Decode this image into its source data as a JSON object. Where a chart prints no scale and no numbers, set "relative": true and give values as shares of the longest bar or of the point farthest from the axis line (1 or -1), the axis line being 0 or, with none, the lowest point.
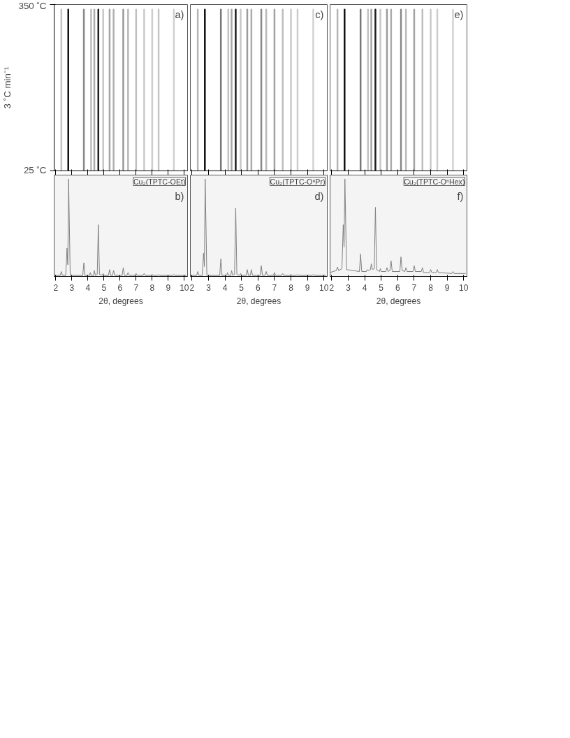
{
  "chart_data": [
    {
      "type": "line",
      "xlim": [
        1.9,
        10.2
      ],
      "xticks": [
        2,
        3,
        4,
        5,
        6,
        7,
        8,
        9,
        10
      ],
      "ylim": [
        25,
        350
      ],
      "yticks": [
        {
          "value": 25,
          "label": "25 ˚C"
        },
        {
          "value": 350,
          "label": "350 ˚C"
        }
      ],
      "ylabel": "3 ˚C min⁻¹",
      "tick_labels": "y",
      "annotations": [
        "a)"
      ],
      "series": [
        {
          "x": [
            2.35,
            2.35
          ],
          "values": [
            27,
            340
          ],
          "color": "#c3c3c3"
        },
        {
          "x": [
            2.78,
            2.78
          ],
          "values": [
            27,
            340
          ],
          "color": "#111111"
        },
        {
          "x": [
            3.75,
            3.75
          ],
          "values": [
            27,
            340
          ],
          "color": "#888888"
        },
        {
          "x": [
            4.2,
            4.2
          ],
          "values": [
            27,
            340
          ],
          "color": "#bdbdbd"
        },
        {
          "x": [
            4.4,
            4.4
          ],
          "values": [
            27,
            340
          ],
          "color": "#aaaaaa"
        },
        {
          "x": [
            4.65,
            4.65
          ],
          "values": [
            27,
            340
          ],
          "color": "#1c1c1c"
        },
        {
          "x": [
            4.95,
            4.95
          ],
          "values": [
            27,
            340
          ],
          "color": "#c7c7c7"
        },
        {
          "x": [
            5.35,
            5.35
          ],
          "values": [
            27,
            340
          ],
          "color": "#a4a4a4"
        },
        {
          "x": [
            5.6,
            5.6
          ],
          "values": [
            27,
            340
          ],
          "color": "#b0b0b0"
        },
        {
          "x": [
            6.2,
            6.2
          ],
          "values": [
            27,
            340
          ],
          "color": "#999999"
        },
        {
          "x": [
            6.5,
            6.5
          ],
          "values": [
            27,
            340
          ],
          "color": "#b8b8b8"
        },
        {
          "x": [
            7.0,
            7.0
          ],
          "values": [
            27,
            340
          ],
          "color": "#c0c0c0"
        },
        {
          "x": [
            7.5,
            7.5
          ],
          "values": [
            27,
            340
          ],
          "color": "#cacaca"
        },
        {
          "x": [
            8.0,
            8.0
          ],
          "values": [
            27,
            340
          ],
          "color": "#cdcdcd"
        },
        {
          "x": [
            8.4,
            8.4
          ],
          "values": [
            27,
            340
          ],
          "color": "#c5c5c5"
        },
        {
          "x": [
            9.35,
            9.35
          ],
          "values": [
            27,
            340
          ],
          "color": "#d0d0d0"
        }
      ]
    },
    {
      "type": "line",
      "xlim": [
        1.9,
        10.2
      ],
      "xticks": [
        2,
        3,
        4,
        5,
        6,
        7,
        8,
        9,
        10
      ],
      "ylim": [
        25,
        350
      ],
      "tick_labels": false,
      "annotations": [
        "c)"
      ],
      "series": [
        {
          "x": [
            2.35,
            2.35
          ],
          "values": [
            27,
            340
          ],
          "color": "#b5b5b5"
        },
        {
          "x": [
            2.78,
            2.78
          ],
          "values": [
            27,
            340
          ],
          "color": "#111111"
        },
        {
          "x": [
            3.75,
            3.75
          ],
          "values": [
            27,
            340
          ],
          "color": "#777777"
        },
        {
          "x": [
            4.2,
            4.2
          ],
          "values": [
            27,
            340
          ],
          "color": "#c2c2c2"
        },
        {
          "x": [
            4.4,
            4.4
          ],
          "values": [
            27,
            340
          ],
          "color": "#a6a6a6"
        },
        {
          "x": [
            4.65,
            4.65
          ],
          "values": [
            27,
            340
          ],
          "color": "#1c1c1c"
        },
        {
          "x": [
            4.95,
            4.95
          ],
          "values": [
            27,
            340
          ],
          "color": "#c6c6c6"
        },
        {
          "x": [
            5.35,
            5.35
          ],
          "values": [
            27,
            340
          ],
          "color": "#9c9c9c"
        },
        {
          "x": [
            5.6,
            5.6
          ],
          "values": [
            27,
            340
          ],
          "color": "#acacac"
        },
        {
          "x": [
            6.2,
            6.2
          ],
          "values": [
            27,
            340
          ],
          "color": "#888888"
        },
        {
          "x": [
            6.5,
            6.5
          ],
          "values": [
            27,
            340
          ],
          "color": "#bababa"
        },
        {
          "x": [
            7.0,
            7.0
          ],
          "values": [
            27,
            340
          ],
          "color": "#a2a2a2"
        },
        {
          "x": [
            7.5,
            7.5
          ],
          "values": [
            27,
            340
          ],
          "color": "#bebebe"
        },
        {
          "x": [
            8.0,
            8.0
          ],
          "values": [
            27,
            340
          ],
          "color": "#c9c9c9"
        },
        {
          "x": [
            8.4,
            8.4
          ],
          "values": [
            27,
            340
          ],
          "color": "#cccccc"
        },
        {
          "x": [
            9.35,
            9.35
          ],
          "values": [
            27,
            340
          ],
          "color": "#d2d2d2"
        }
      ]
    },
    {
      "type": "line",
      "xlim": [
        1.9,
        10.2
      ],
      "xticks": [
        2,
        3,
        4,
        5,
        6,
        7,
        8,
        9,
        10
      ],
      "ylim": [
        25,
        350
      ],
      "tick_labels": false,
      "annotations": [
        "e)"
      ],
      "series": [
        {
          "x": [
            2.35,
            2.35
          ],
          "values": [
            27,
            340
          ],
          "color": "#b5b5b5"
        },
        {
          "x": [
            2.78,
            2.78
          ],
          "values": [
            27,
            340
          ],
          "color": "#111111"
        },
        {
          "x": [
            3.75,
            3.75
          ],
          "values": [
            27,
            340
          ],
          "color": "#777777"
        },
        {
          "x": [
            4.2,
            4.2
          ],
          "values": [
            27,
            340
          ],
          "color": "#c2c2c2"
        },
        {
          "x": [
            4.4,
            4.4
          ],
          "values": [
            27,
            340
          ],
          "color": "#a6a6a6"
        },
        {
          "x": [
            4.65,
            4.65
          ],
          "values": [
            27,
            340
          ],
          "color": "#1c1c1c"
        },
        {
          "x": [
            4.95,
            4.95
          ],
          "values": [
            27,
            340
          ],
          "color": "#c6c6c6"
        },
        {
          "x": [
            5.35,
            5.35
          ],
          "values": [
            27,
            340
          ],
          "color": "#9c9c9c"
        },
        {
          "x": [
            5.6,
            5.6
          ],
          "values": [
            27,
            340
          ],
          "color": "#acacac"
        },
        {
          "x": [
            6.2,
            6.2
          ],
          "values": [
            27,
            340
          ],
          "color": "#888888"
        },
        {
          "x": [
            6.5,
            6.5
          ],
          "values": [
            27,
            340
          ],
          "color": "#bababa"
        },
        {
          "x": [
            7.0,
            7.0
          ],
          "values": [
            27,
            340
          ],
          "color": "#a2a2a2"
        },
        {
          "x": [
            7.5,
            7.5
          ],
          "values": [
            27,
            340
          ],
          "color": "#bebebe"
        },
        {
          "x": [
            8.0,
            8.0
          ],
          "values": [
            27,
            340
          ],
          "color": "#c9c9c9"
        },
        {
          "x": [
            8.4,
            8.4
          ],
          "values": [
            27,
            340
          ],
          "color": "#cccccc"
        },
        {
          "x": [
            9.35,
            9.35
          ],
          "values": [
            27,
            340
          ],
          "color": "#d2d2d2"
        }
      ]
    },
    {
      "type": "line",
      "relative": true,
      "xlim": [
        1.9,
        10.2
      ],
      "xticks": [
        2,
        3,
        4,
        5,
        6,
        7,
        8,
        9,
        10
      ],
      "xlabel": "2θ, degrees",
      "tick_labels": "x",
      "annotations": [
        "Cu₂(TPTC-OEt)",
        "b)"
      ],
      "x": [
        1.9,
        2.28,
        2.35,
        2.42,
        2.62,
        2.7,
        2.75,
        2.8,
        2.9,
        3.68,
        3.75,
        3.82,
        4.1,
        4.15,
        4.2,
        4.35,
        4.4,
        4.47,
        4.58,
        4.65,
        4.72,
        4.9,
        4.95,
        5.0,
        5.28,
        5.35,
        5.42,
        5.53,
        5.6,
        5.67,
        6.13,
        6.2,
        6.27,
        6.43,
        6.5,
        6.57,
        6.93,
        7.0,
        7.07,
        7.43,
        7.5,
        7.57,
        7.93,
        8.0,
        8.07,
        8.33,
        8.4,
        8.47,
        9.28,
        9.35,
        9.42,
        10.1
      ],
      "series": [
        {
          "color": "#808080",
          "values": [
            0.01,
            0.01,
            0.05,
            0.01,
            0.01,
            0.29,
            0.12,
            1.0,
            0.01,
            0.01,
            0.14,
            0.01,
            0.01,
            0.04,
            0.01,
            0.01,
            0.06,
            0.01,
            0.02,
            0.53,
            0.02,
            0.01,
            0.03,
            0.01,
            0.01,
            0.07,
            0.01,
            0.01,
            0.06,
            0.01,
            0.01,
            0.09,
            0.01,
            0.01,
            0.04,
            0.01,
            0.01,
            0.03,
            0.01,
            0.01,
            0.03,
            0.01,
            0.01,
            0.02,
            0.01,
            0.01,
            0.02,
            0.01,
            0.01,
            0.02,
            0.01,
            0.01
          ]
        }
      ]
    },
    {
      "type": "line",
      "relative": true,
      "xlim": [
        1.9,
        10.2
      ],
      "xticks": [
        2,
        3,
        4,
        5,
        6,
        7,
        8,
        9,
        10
      ],
      "xlabel": "2θ, degrees",
      "tick_labels": "x",
      "annotations": [
        "Cu₂(TPTC-OⁿPr)",
        "d)"
      ],
      "x": [
        1.9,
        2.28,
        2.35,
        2.42,
        2.62,
        2.7,
        2.75,
        2.8,
        2.9,
        3.68,
        3.75,
        3.82,
        4.1,
        4.15,
        4.2,
        4.35,
        4.4,
        4.47,
        4.58,
        4.65,
        4.72,
        4.9,
        4.95,
        5.0,
        5.28,
        5.35,
        5.42,
        5.53,
        5.6,
        5.67,
        6.13,
        6.2,
        6.27,
        6.43,
        6.5,
        6.57,
        6.93,
        7.0,
        7.07,
        7.43,
        7.5,
        7.57,
        7.93,
        8.0,
        8.07,
        8.33,
        8.4,
        8.47,
        9.28,
        9.35,
        9.42,
        10.1
      ],
      "series": [
        {
          "color": "#808080",
          "values": [
            0.01,
            0.01,
            0.05,
            0.01,
            0.01,
            0.24,
            0.1,
            1.0,
            0.01,
            0.01,
            0.18,
            0.01,
            0.01,
            0.04,
            0.01,
            0.01,
            0.06,
            0.01,
            0.02,
            0.7,
            0.02,
            0.01,
            0.03,
            0.01,
            0.01,
            0.07,
            0.01,
            0.01,
            0.07,
            0.01,
            0.01,
            0.11,
            0.01,
            0.01,
            0.05,
            0.01,
            0.01,
            0.04,
            0.01,
            0.01,
            0.03,
            0.01,
            0.01,
            0.02,
            0.01,
            0.01,
            0.02,
            0.01,
            0.01,
            0.02,
            0.01,
            0.01
          ]
        }
      ]
    },
    {
      "type": "line",
      "relative": true,
      "xlim": [
        1.9,
        10.2
      ],
      "xticks": [
        2,
        3,
        4,
        5,
        6,
        7,
        8,
        9,
        10
      ],
      "xlabel": "2θ, degrees",
      "tick_labels": "x",
      "annotations": [
        "Cu₂(TPTC-OⁿHex)",
        "f)"
      ],
      "x": [
        1.9,
        2.28,
        2.35,
        2.42,
        2.62,
        2.7,
        2.75,
        2.8,
        2.9,
        3.68,
        3.75,
        3.82,
        4.1,
        4.15,
        4.2,
        4.35,
        4.4,
        4.47,
        4.58,
        4.65,
        4.72,
        4.9,
        4.95,
        5.0,
        5.28,
        5.35,
        5.42,
        5.53,
        5.6,
        5.67,
        6.13,
        6.2,
        6.27,
        6.43,
        6.5,
        6.57,
        6.93,
        7.0,
        7.07,
        7.43,
        7.5,
        7.57,
        7.93,
        8.0,
        8.07,
        8.33,
        8.4,
        8.47,
        9.28,
        9.35,
        9.42,
        10.1
      ],
      "series": [
        {
          "color": "#808080",
          "values": [
            0.04,
            0.06,
            0.095,
            0.06,
            0.08,
            0.53,
            0.3,
            1.0,
            0.07,
            0.05,
            0.23,
            0.05,
            0.05,
            0.07,
            0.06,
            0.07,
            0.13,
            0.07,
            0.08,
            0.71,
            0.07,
            0.05,
            0.08,
            0.05,
            0.05,
            0.09,
            0.05,
            0.06,
            0.16,
            0.05,
            0.05,
            0.2,
            0.06,
            0.05,
            0.09,
            0.05,
            0.05,
            0.11,
            0.05,
            0.05,
            0.09,
            0.04,
            0.04,
            0.07,
            0.04,
            0.04,
            0.07,
            0.04,
            0.03,
            0.05,
            0.03,
            0.03
          ]
        }
      ]
    }
  ]
}
